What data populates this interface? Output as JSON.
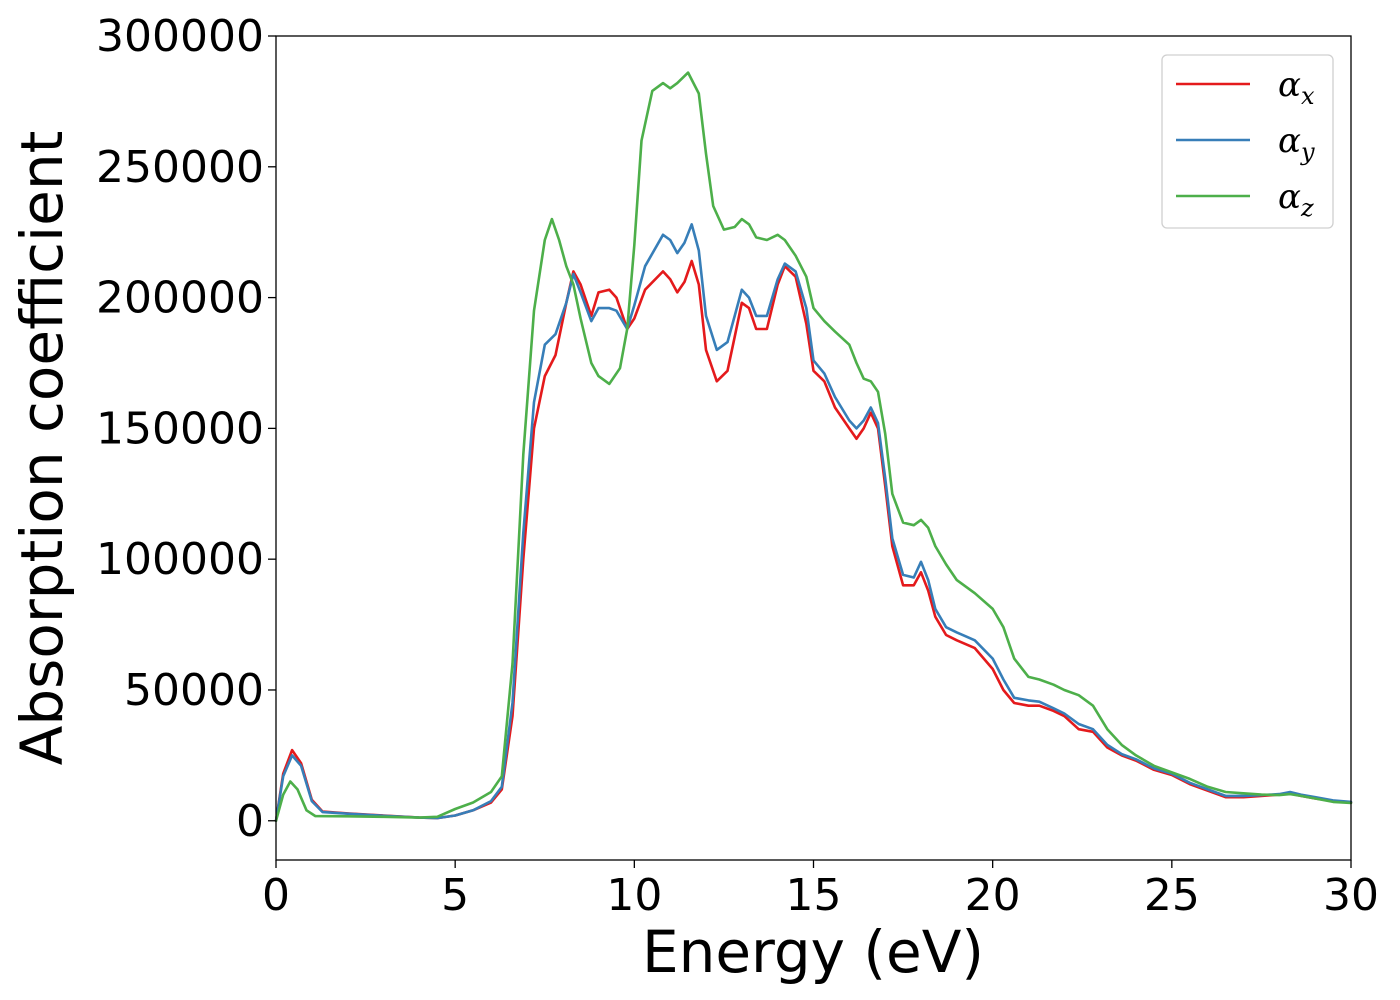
{
  "chart_data": {
    "type": "line",
    "title": "",
    "xlabel": "Energy (eV)",
    "ylabel": "Absorption coefficient",
    "xlim": [
      0,
      30
    ],
    "ylim": [
      -15000,
      300000
    ],
    "xticks": [
      0,
      5,
      10,
      15,
      20,
      25,
      30
    ],
    "yticks": [
      0,
      50000,
      100000,
      150000,
      200000,
      250000,
      300000
    ],
    "grid": false,
    "legend_position": "top-right",
    "series": [
      {
        "name": "α",
        "sub": "x",
        "color": "#e41a1c",
        "points": [
          [
            0,
            0
          ],
          [
            0.2,
            18000
          ],
          [
            0.45,
            27000
          ],
          [
            0.7,
            22000
          ],
          [
            1.0,
            8000
          ],
          [
            1.3,
            3500
          ],
          [
            2,
            2800
          ],
          [
            3,
            2000
          ],
          [
            4,
            1200
          ],
          [
            4.5,
            1000
          ],
          [
            5,
            2000
          ],
          [
            5.5,
            4000
          ],
          [
            6,
            7000
          ],
          [
            6.3,
            12000
          ],
          [
            6.6,
            40000
          ],
          [
            6.9,
            100000
          ],
          [
            7.2,
            150000
          ],
          [
            7.5,
            170000
          ],
          [
            7.8,
            178000
          ],
          [
            8.1,
            198000
          ],
          [
            8.3,
            210000
          ],
          [
            8.5,
            205000
          ],
          [
            8.8,
            193000
          ],
          [
            9.0,
            202000
          ],
          [
            9.3,
            203000
          ],
          [
            9.5,
            200000
          ],
          [
            9.8,
            188000
          ],
          [
            10.0,
            192000
          ],
          [
            10.3,
            203000
          ],
          [
            10.8,
            210000
          ],
          [
            11.0,
            207000
          ],
          [
            11.2,
            202000
          ],
          [
            11.4,
            206000
          ],
          [
            11.6,
            214000
          ],
          [
            11.8,
            205000
          ],
          [
            12.0,
            180000
          ],
          [
            12.3,
            168000
          ],
          [
            12.6,
            172000
          ],
          [
            12.8,
            185000
          ],
          [
            13.0,
            198000
          ],
          [
            13.2,
            196000
          ],
          [
            13.4,
            188000
          ],
          [
            13.7,
            188000
          ],
          [
            14.0,
            205000
          ],
          [
            14.2,
            212000
          ],
          [
            14.5,
            208000
          ],
          [
            14.8,
            190000
          ],
          [
            15.0,
            172000
          ],
          [
            15.3,
            168000
          ],
          [
            15.6,
            158000
          ],
          [
            16.0,
            150000
          ],
          [
            16.2,
            146000
          ],
          [
            16.4,
            150000
          ],
          [
            16.6,
            156000
          ],
          [
            16.8,
            150000
          ],
          [
            17.0,
            128000
          ],
          [
            17.2,
            105000
          ],
          [
            17.5,
            90000
          ],
          [
            17.8,
            90000
          ],
          [
            18.0,
            95000
          ],
          [
            18.2,
            88000
          ],
          [
            18.4,
            78000
          ],
          [
            18.7,
            71000
          ],
          [
            19.0,
            69000
          ],
          [
            19.5,
            66000
          ],
          [
            20.0,
            58000
          ],
          [
            20.3,
            50000
          ],
          [
            20.6,
            45000
          ],
          [
            21.0,
            44000
          ],
          [
            21.3,
            44000
          ],
          [
            21.7,
            42000
          ],
          [
            22.0,
            40000
          ],
          [
            22.4,
            35000
          ],
          [
            22.8,
            34000
          ],
          [
            23.2,
            28000
          ],
          [
            23.6,
            25000
          ],
          [
            24.0,
            23000
          ],
          [
            24.5,
            19500
          ],
          [
            25.0,
            17500
          ],
          [
            25.5,
            14000
          ],
          [
            26.0,
            11500
          ],
          [
            26.5,
            9000
          ],
          [
            27.0,
            9000
          ],
          [
            27.5,
            9500
          ],
          [
            28.0,
            10000
          ],
          [
            28.3,
            10500
          ],
          [
            28.6,
            9500
          ],
          [
            29.0,
            8500
          ],
          [
            29.5,
            7500
          ],
          [
            30.0,
            7000
          ]
        ]
      },
      {
        "name": "α",
        "sub": "y",
        "color": "#377eb8",
        "points": [
          [
            0,
            0
          ],
          [
            0.2,
            17000
          ],
          [
            0.45,
            25000
          ],
          [
            0.7,
            21000
          ],
          [
            1.0,
            7500
          ],
          [
            1.3,
            3300
          ],
          [
            2,
            2700
          ],
          [
            3,
            1900
          ],
          [
            4,
            1200
          ],
          [
            4.5,
            1000
          ],
          [
            5,
            2000
          ],
          [
            5.5,
            4000
          ],
          [
            6,
            7500
          ],
          [
            6.3,
            13000
          ],
          [
            6.6,
            45000
          ],
          [
            6.9,
            110000
          ],
          [
            7.2,
            160000
          ],
          [
            7.5,
            182000
          ],
          [
            7.8,
            186000
          ],
          [
            8.1,
            198000
          ],
          [
            8.3,
            209000
          ],
          [
            8.5,
            202000
          ],
          [
            8.8,
            191000
          ],
          [
            9.0,
            196000
          ],
          [
            9.3,
            196000
          ],
          [
            9.5,
            195000
          ],
          [
            9.8,
            188000
          ],
          [
            10.0,
            197000
          ],
          [
            10.3,
            212000
          ],
          [
            10.8,
            224000
          ],
          [
            11.0,
            222000
          ],
          [
            11.2,
            217000
          ],
          [
            11.4,
            221000
          ],
          [
            11.6,
            228000
          ],
          [
            11.8,
            218000
          ],
          [
            12.0,
            193000
          ],
          [
            12.3,
            180000
          ],
          [
            12.6,
            183000
          ],
          [
            12.8,
            193000
          ],
          [
            13.0,
            203000
          ],
          [
            13.2,
            200000
          ],
          [
            13.4,
            193000
          ],
          [
            13.7,
            193000
          ],
          [
            14.0,
            207000
          ],
          [
            14.2,
            213000
          ],
          [
            14.5,
            210000
          ],
          [
            14.8,
            196000
          ],
          [
            15.0,
            176000
          ],
          [
            15.3,
            171000
          ],
          [
            15.6,
            162000
          ],
          [
            16.0,
            153000
          ],
          [
            16.2,
            150000
          ],
          [
            16.4,
            153000
          ],
          [
            16.6,
            158000
          ],
          [
            16.8,
            152000
          ],
          [
            17.0,
            131000
          ],
          [
            17.2,
            108000
          ],
          [
            17.5,
            94000
          ],
          [
            17.8,
            93000
          ],
          [
            18.0,
            99000
          ],
          [
            18.2,
            92000
          ],
          [
            18.4,
            81000
          ],
          [
            18.7,
            74000
          ],
          [
            19.0,
            72000
          ],
          [
            19.5,
            69000
          ],
          [
            20.0,
            62000
          ],
          [
            20.3,
            54000
          ],
          [
            20.6,
            47000
          ],
          [
            21.0,
            46000
          ],
          [
            21.3,
            45500
          ],
          [
            21.7,
            43000
          ],
          [
            22.0,
            41000
          ],
          [
            22.4,
            37000
          ],
          [
            22.8,
            35000
          ],
          [
            23.2,
            29000
          ],
          [
            23.6,
            25500
          ],
          [
            24.0,
            23500
          ],
          [
            24.5,
            20000
          ],
          [
            25.0,
            18000
          ],
          [
            25.5,
            14500
          ],
          [
            26.0,
            12000
          ],
          [
            26.5,
            9500
          ],
          [
            27.0,
            9500
          ],
          [
            27.5,
            9800
          ],
          [
            28.0,
            10200
          ],
          [
            28.3,
            11000
          ],
          [
            28.6,
            10000
          ],
          [
            29.0,
            9000
          ],
          [
            29.5,
            7800
          ],
          [
            30.0,
            7200
          ]
        ]
      },
      {
        "name": "α",
        "sub": "z",
        "color": "#4daf4a",
        "points": [
          [
            0,
            0
          ],
          [
            0.2,
            10000
          ],
          [
            0.4,
            15000
          ],
          [
            0.6,
            12000
          ],
          [
            0.85,
            4000
          ],
          [
            1.1,
            1800
          ],
          [
            2,
            1700
          ],
          [
            3,
            1500
          ],
          [
            4,
            1200
          ],
          [
            4.5,
            1500
          ],
          [
            5,
            4500
          ],
          [
            5.5,
            7000
          ],
          [
            6,
            11000
          ],
          [
            6.3,
            17000
          ],
          [
            6.6,
            60000
          ],
          [
            6.9,
            140000
          ],
          [
            7.2,
            195000
          ],
          [
            7.5,
            222000
          ],
          [
            7.7,
            230000
          ],
          [
            7.9,
            222000
          ],
          [
            8.1,
            212000
          ],
          [
            8.3,
            205000
          ],
          [
            8.5,
            192000
          ],
          [
            8.8,
            175000
          ],
          [
            9.0,
            170000
          ],
          [
            9.3,
            167000
          ],
          [
            9.6,
            173000
          ],
          [
            9.8,
            188000
          ],
          [
            10.0,
            220000
          ],
          [
            10.2,
            260000
          ],
          [
            10.5,
            279000
          ],
          [
            10.8,
            282000
          ],
          [
            11.0,
            280000
          ],
          [
            11.2,
            282000
          ],
          [
            11.5,
            286000
          ],
          [
            11.8,
            278000
          ],
          [
            12.0,
            255000
          ],
          [
            12.2,
            235000
          ],
          [
            12.5,
            226000
          ],
          [
            12.8,
            227000
          ],
          [
            13.0,
            230000
          ],
          [
            13.2,
            228000
          ],
          [
            13.4,
            223000
          ],
          [
            13.7,
            222000
          ],
          [
            14.0,
            224000
          ],
          [
            14.2,
            222000
          ],
          [
            14.5,
            216000
          ],
          [
            14.8,
            208000
          ],
          [
            15.0,
            196000
          ],
          [
            15.3,
            191000
          ],
          [
            15.6,
            187000
          ],
          [
            16.0,
            182000
          ],
          [
            16.2,
            175000
          ],
          [
            16.4,
            169000
          ],
          [
            16.6,
            168000
          ],
          [
            16.8,
            164000
          ],
          [
            17.0,
            148000
          ],
          [
            17.2,
            125000
          ],
          [
            17.5,
            114000
          ],
          [
            17.8,
            113000
          ],
          [
            18.0,
            115000
          ],
          [
            18.2,
            112000
          ],
          [
            18.4,
            105000
          ],
          [
            18.7,
            98000
          ],
          [
            19.0,
            92000
          ],
          [
            19.5,
            87000
          ],
          [
            20.0,
            81000
          ],
          [
            20.3,
            74000
          ],
          [
            20.6,
            62000
          ],
          [
            21.0,
            55000
          ],
          [
            21.3,
            54000
          ],
          [
            21.7,
            52000
          ],
          [
            22.0,
            50000
          ],
          [
            22.4,
            48000
          ],
          [
            22.8,
            44000
          ],
          [
            23.2,
            35000
          ],
          [
            23.6,
            29000
          ],
          [
            24.0,
            25000
          ],
          [
            24.5,
            21000
          ],
          [
            25.0,
            18500
          ],
          [
            25.5,
            16000
          ],
          [
            26.0,
            13000
          ],
          [
            26.5,
            11000
          ],
          [
            27.0,
            10500
          ],
          [
            27.5,
            10000
          ],
          [
            28.0,
            9800
          ],
          [
            28.3,
            10200
          ],
          [
            28.6,
            9500
          ],
          [
            29.0,
            8500
          ],
          [
            29.5,
            7200
          ],
          [
            30.0,
            6800
          ]
        ]
      }
    ]
  }
}
